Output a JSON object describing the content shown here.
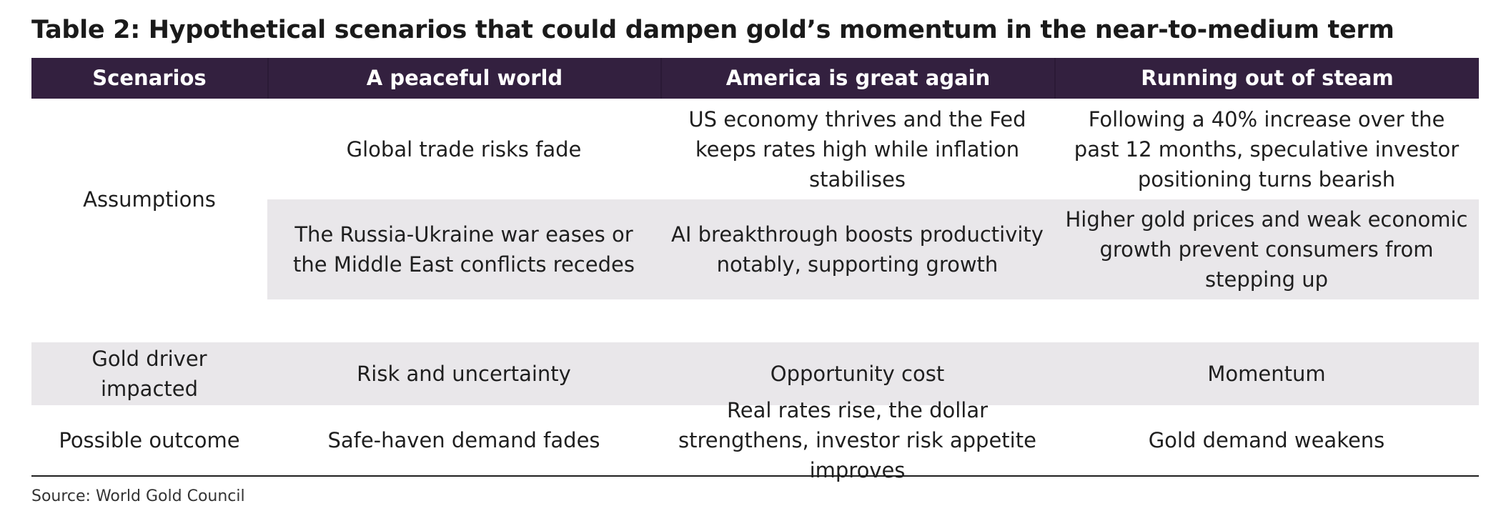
{
  "title": "Table 2: Hypothetical scenarios that could dampen gold’s momentum in the near-to-medium term",
  "header": {
    "scenarios": "Scenarios",
    "col1": "A peaceful world",
    "col2": "America is great again",
    "col3": "Running out of steam"
  },
  "assumptions": {
    "label": "Assumptions",
    "rows": [
      {
        "col1": "Global trade risks fade",
        "col2": "US economy thrives and the Fed keeps rates high while inflation stabilises",
        "col3": "Following a 40% increase over the past 12 months, speculative investor positioning turns bearish"
      },
      {
        "col1": "The Russia-Ukraine war eases or the Middle East conflicts recedes",
        "col2": "AI breakthrough boosts productivity notably, supporting growth",
        "col3": "Higher gold prices and weak economic growth prevent consumers from stepping up"
      }
    ]
  },
  "driver": {
    "label": "Gold driver impacted",
    "col1": "Risk and uncertainty",
    "col2": "Opportunity cost",
    "col3": "Momentum"
  },
  "outcome": {
    "label": "Possible outcome",
    "col1": "Safe-haven demand fades",
    "col2": "Real rates rise, the dollar strengthens, investor risk appetite improves",
    "col3": "Gold demand weakens"
  },
  "source": "Source: World Gold Council",
  "colors": {
    "header_bg": "#33203f",
    "band_grey": "#e9e7ea"
  }
}
